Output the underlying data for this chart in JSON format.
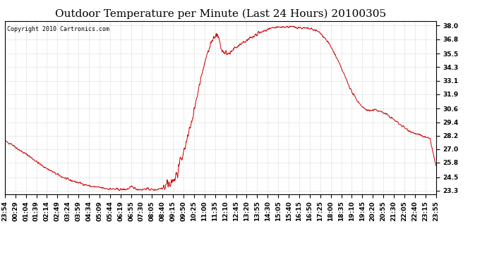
{
  "title": "Outdoor Temperature per Minute (Last 24 Hours) 20100305",
  "copyright_text": "Copyright 2010 Cartronics.com",
  "line_color": "#cc0000",
  "background_color": "#ffffff",
  "grid_color": "#999999",
  "y_ticks": [
    23.3,
    24.5,
    25.8,
    27.0,
    28.2,
    29.4,
    30.6,
    31.9,
    33.1,
    34.3,
    35.5,
    36.8,
    38.0
  ],
  "x_tick_labels": [
    "23:54",
    "00:29",
    "01:04",
    "01:39",
    "02:14",
    "02:49",
    "03:24",
    "03:59",
    "04:34",
    "05:09",
    "05:44",
    "06:19",
    "06:55",
    "07:30",
    "08:05",
    "08:40",
    "09:15",
    "09:50",
    "10:25",
    "11:00",
    "11:35",
    "12:10",
    "12:45",
    "13:20",
    "13:55",
    "14:30",
    "15:05",
    "15:40",
    "16:15",
    "16:50",
    "17:25",
    "18:00",
    "18:35",
    "19:10",
    "19:45",
    "20:20",
    "20:55",
    "21:30",
    "22:05",
    "22:40",
    "23:15",
    "23:55"
  ],
  "ylim": [
    23.0,
    38.4
  ],
  "title_fontsize": 11,
  "tick_fontsize": 6.5,
  "copyright_fontsize": 6,
  "waypoints_idx": [
    0,
    20,
    35,
    55,
    75,
    95,
    120,
    145,
    165,
    185,
    210,
    235,
    260,
    285,
    310,
    335,
    355,
    370,
    390,
    405,
    415,
    420,
    425,
    430,
    435,
    440,
    448,
    455,
    462,
    467,
    472,
    478,
    485,
    492,
    498,
    505,
    512,
    518,
    525,
    532,
    540,
    548,
    556,
    563,
    570,
    580,
    590,
    600,
    612,
    624,
    636,
    648,
    660,
    672,
    684,
    696,
    710,
    724,
    738,
    752,
    766,
    780,
    792,
    804,
    816,
    828,
    840,
    855,
    870,
    885,
    900,
    915,
    930,
    945,
    960,
    975,
    990,
    1005,
    1020,
    1035,
    1050,
    1065,
    1080,
    1095,
    1110,
    1125,
    1140,
    1160,
    1180,
    1200,
    1220,
    1240,
    1260,
    1280,
    1300,
    1320,
    1340,
    1360,
    1380,
    1400,
    1420,
    1439
  ],
  "waypoints_val": [
    27.7,
    27.5,
    27.2,
    26.8,
    26.5,
    26.1,
    25.6,
    25.2,
    24.9,
    24.6,
    24.3,
    24.1,
    23.9,
    23.7,
    23.6,
    23.5,
    23.45,
    23.42,
    23.4,
    23.42,
    23.5,
    23.6,
    23.65,
    23.6,
    23.5,
    23.45,
    23.42,
    23.4,
    23.42,
    23.45,
    23.48,
    23.45,
    23.42,
    23.4,
    23.38,
    23.4,
    23.45,
    23.5,
    23.55,
    23.6,
    23.7,
    23.8,
    24.0,
    24.2,
    24.5,
    25.2,
    26.0,
    27.0,
    28.2,
    29.5,
    31.0,
    32.5,
    34.0,
    35.2,
    36.2,
    36.9,
    37.2,
    35.8,
    35.4,
    35.6,
    35.9,
    36.2,
    36.4,
    36.6,
    36.8,
    37.0,
    37.2,
    37.4,
    37.55,
    37.7,
    37.8,
    37.85,
    37.88,
    37.9,
    37.88,
    37.85,
    37.8,
    37.75,
    37.7,
    37.6,
    37.4,
    37.0,
    36.5,
    35.8,
    35.0,
    34.1,
    33.2,
    32.0,
    31.2,
    30.6,
    30.4,
    30.5,
    30.3,
    30.0,
    29.6,
    29.2,
    28.8,
    28.5,
    28.3,
    28.1,
    27.9,
    25.5
  ]
}
